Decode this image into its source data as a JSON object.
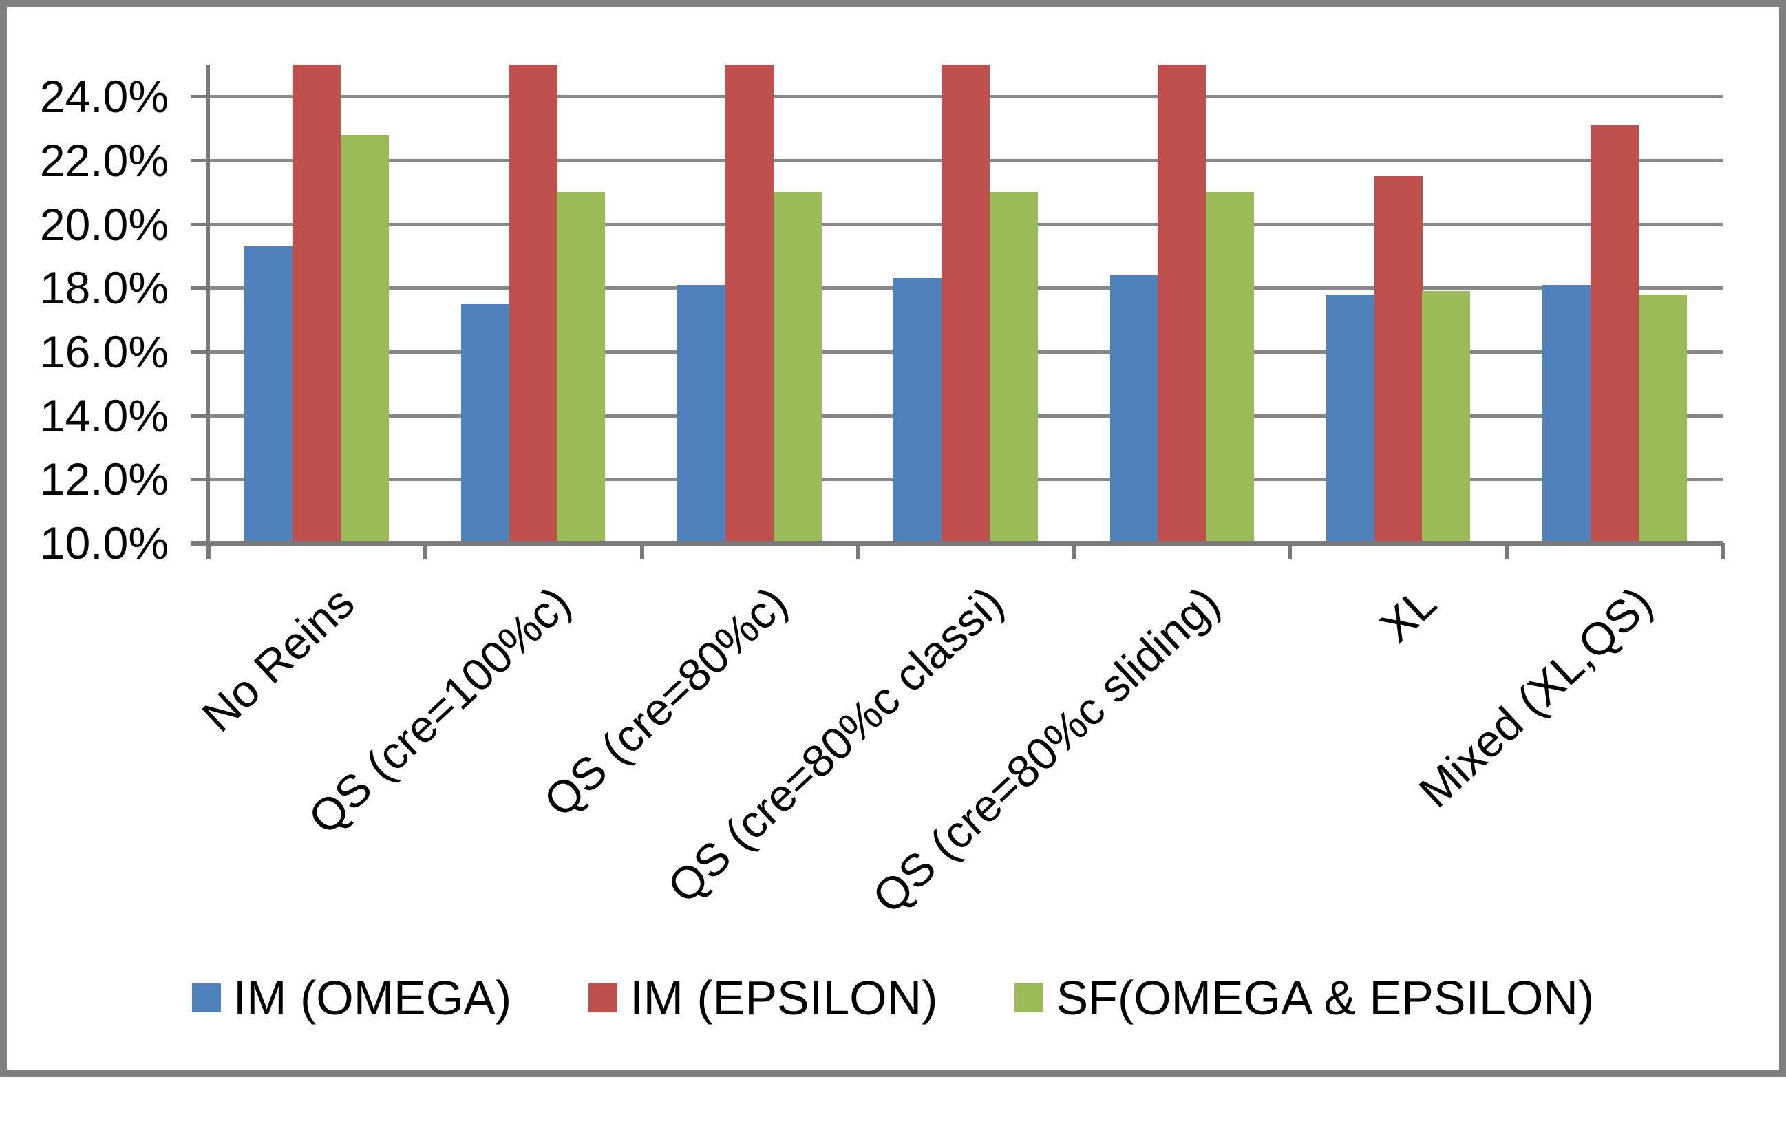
{
  "chart": {
    "background": "#FFFFFF",
    "border_color": "#7F7F7F",
    "gridline_color": "#878787",
    "axis_color": "#7A7A7A",
    "text_color": "#000000"
  },
  "chart_data": {
    "type": "bar",
    "title": "",
    "xlabel": "",
    "ylabel": "",
    "categories": [
      "No Reins",
      "QS (cre=100%c)",
      "QS (cre=80%c)",
      "QS (cre=80%c classi)",
      "QS (cre=80%c sliding)",
      "XL",
      "Mixed (XL,QS)"
    ],
    "series": [
      {
        "name": "IM (OMEGA)",
        "color": "#4F81BD",
        "values": [
          19.3,
          17.5,
          18.1,
          18.3,
          18.4,
          17.8,
          18.1
        ]
      },
      {
        "name": "IM (EPSILON)",
        "color": "#C0504D",
        "values": [
          25.0,
          25.0,
          25.0,
          25.0,
          25.0,
          21.5,
          23.1
        ]
      },
      {
        "name": "SF(OMEGA & EPSILON)",
        "color": "#9BBB59",
        "values": [
          22.8,
          21.0,
          21.0,
          21.0,
          21.0,
          17.9,
          17.8
        ]
      }
    ],
    "ylim": [
      10,
      25
    ],
    "yticks": [
      {
        "value": 24,
        "label": "24.0%"
      },
      {
        "value": 22,
        "label": "22.0%"
      },
      {
        "value": 20,
        "label": "20.0%"
      },
      {
        "value": 18,
        "label": "18.0%"
      },
      {
        "value": 16,
        "label": "16.0%"
      },
      {
        "value": 14,
        "label": "14.0%"
      },
      {
        "value": 12,
        "label": "12.0%"
      },
      {
        "value": 10,
        "label": "10.0%"
      }
    ],
    "grid": true,
    "legend_position": "bottom"
  }
}
